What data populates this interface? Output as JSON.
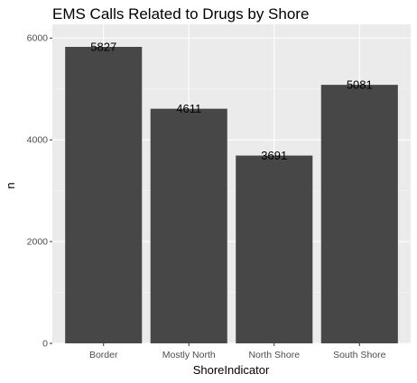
{
  "chart_data": {
    "type": "bar",
    "title": "EMS Calls Related to Drugs by Shore",
    "xlabel": "ShoreIndicator",
    "ylabel": "n",
    "categories": [
      "Border",
      "Mostly North",
      "North Shore",
      "South Shore"
    ],
    "values": [
      5827,
      4611,
      3691,
      5081
    ],
    "data_labels": [
      "5827",
      "4611",
      "3691",
      "5081"
    ],
    "ylim": [
      0,
      6270
    ],
    "yticks": [
      0,
      2000,
      4000,
      6000
    ],
    "ytick_labels": [
      "0",
      "2000",
      "4000",
      "6000"
    ],
    "grid": true,
    "legend": "none",
    "colors": {
      "bar": "#474747",
      "panel": "#ebebeb",
      "grid_major": "#ffffff",
      "tick_text": "#4d4d4d"
    }
  }
}
